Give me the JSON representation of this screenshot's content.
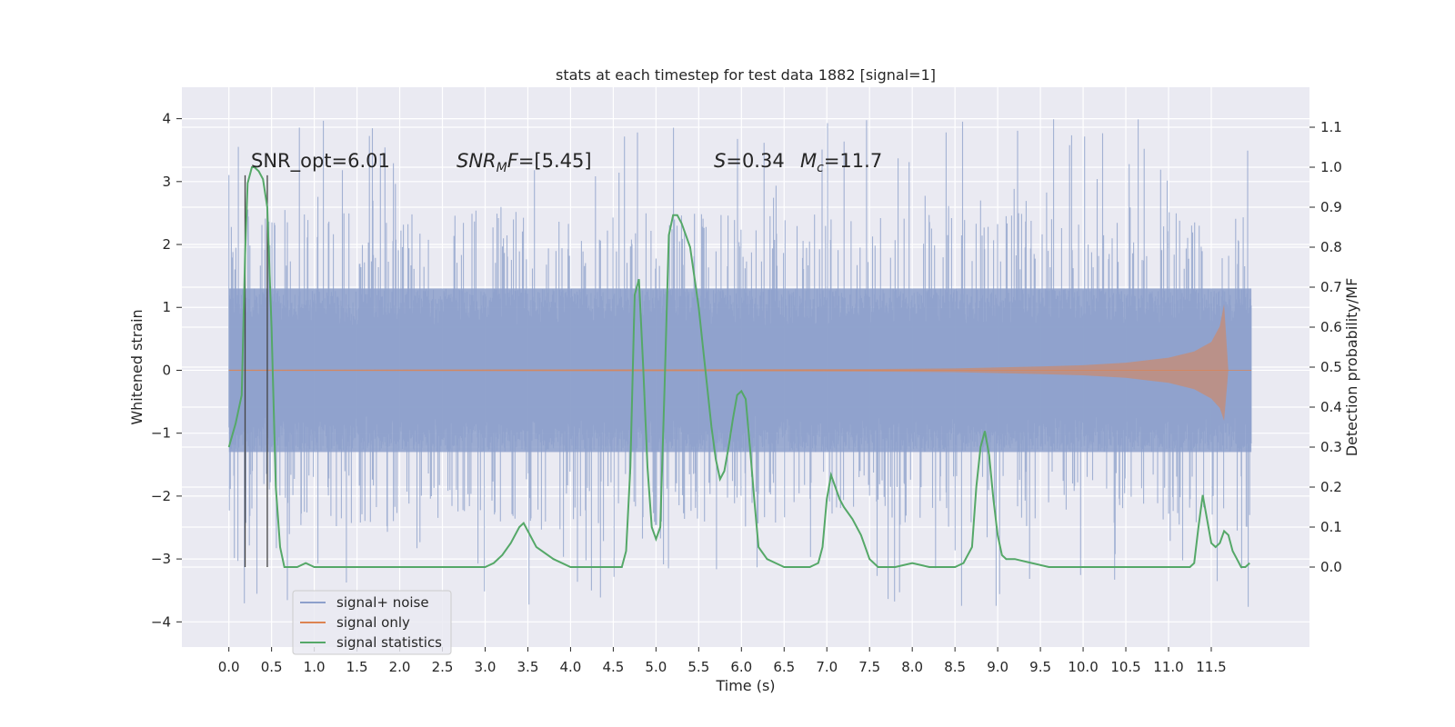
{
  "chart_data": {
    "type": "line",
    "title": "stats at each timestep for test data 1882 [signal=1]",
    "xlabel": "Time (s)",
    "ylabel": "Whitened strain",
    "ylabel_right": "Detection probability/MF",
    "xlim": [
      -0.55,
      12.65
    ],
    "ylim": [
      -4.4,
      4.5
    ],
    "ylim_right": [
      -0.2,
      1.2
    ],
    "xticks": [
      0.0,
      0.5,
      1.0,
      1.5,
      2.0,
      2.5,
      3.0,
      3.5,
      4.0,
      4.5,
      5.0,
      5.5,
      6.0,
      6.5,
      7.0,
      7.5,
      8.0,
      8.5,
      9.0,
      9.5,
      10.0,
      10.5,
      11.0,
      11.5
    ],
    "xtick_labels": [
      "0.0",
      "0.5",
      "1.0",
      "1.5",
      "2.0",
      "2.5",
      "3.0",
      "3.5",
      "4.0",
      "4.5",
      "5.0",
      "5.5",
      "6.0",
      "6.5",
      "7.0",
      "7.5",
      "8.0",
      "8.5",
      "9.0",
      "9.5",
      "10.0",
      "10.5",
      "11.0",
      "11.5"
    ],
    "yticks_left": [
      4,
      3,
      2,
      1,
      0,
      -1,
      -2,
      -3,
      -4
    ],
    "ytick_labels_left": [
      "4",
      "3",
      "2",
      "1",
      "0",
      "−1",
      "−2",
      "−3",
      "−4"
    ],
    "yticks_right": [
      1.1,
      1.0,
      0.9,
      0.8,
      0.7,
      0.6,
      0.5,
      0.4,
      0.3,
      0.2,
      0.1,
      0.0
    ],
    "ytick_labels_right": [
      "1.1",
      "1.0",
      "0.9",
      "0.8",
      "0.7",
      "0.6",
      "0.5",
      "0.4",
      "0.3",
      "0.2",
      "0.1",
      "0.0"
    ],
    "grid": true,
    "legend_position": "lower-left",
    "annotations": {
      "snr_opt": "SNR_opt=6.01",
      "snr_mf_sym": "SNR",
      "snr_mf_sub": "M",
      "snr_mf_sym2": "F",
      "snr_mf_val": "=[5.45]",
      "s_sym": "S",
      "s_val": "=0.34",
      "mc_sym": "M",
      "mc_sub": "c",
      "mc_val": "=11.7"
    },
    "vertical_markers_x": [
      0.19,
      0.45
    ],
    "series": [
      {
        "name": "signal+ noise",
        "color": "#8da0cb",
        "axis": "left",
        "description": "whitened noisy strain from 0 to 12 s; dense band roughly ±1.3 with spikes to about ±4"
      },
      {
        "name": "signal only",
        "color": "#dd8452",
        "axis": "left",
        "envelope": {
          "x": [
            0.0,
            7.5,
            8.5,
            9.5,
            10.0,
            10.5,
            11.0,
            11.3,
            11.5,
            11.6,
            11.65,
            11.7,
            12.0
          ],
          "upper": [
            0.01,
            0.02,
            0.03,
            0.06,
            0.08,
            0.12,
            0.2,
            0.3,
            0.45,
            0.7,
            1.05,
            0.0,
            0.0
          ],
          "lower": [
            -0.01,
            -0.02,
            -0.03,
            -0.06,
            -0.08,
            -0.12,
            -0.2,
            -0.3,
            -0.45,
            -0.6,
            -0.8,
            0.0,
            0.0
          ]
        }
      },
      {
        "name": "signal statistics",
        "color": "#55a868",
        "axis": "right",
        "x": [
          0.0,
          0.08,
          0.15,
          0.19,
          0.22,
          0.27,
          0.3,
          0.35,
          0.4,
          0.45,
          0.5,
          0.55,
          0.6,
          0.65,
          0.7,
          0.8,
          0.9,
          1.0,
          1.2,
          1.4,
          1.6,
          1.8,
          2.0,
          2.2,
          2.5,
          2.8,
          3.0,
          3.1,
          3.2,
          3.3,
          3.4,
          3.45,
          3.5,
          3.6,
          3.8,
          4.0,
          4.2,
          4.5,
          4.6,
          4.65,
          4.7,
          4.75,
          4.8,
          4.85,
          4.9,
          4.95,
          5.0,
          5.05,
          5.1,
          5.15,
          5.2,
          5.25,
          5.3,
          5.4,
          5.5,
          5.6,
          5.65,
          5.7,
          5.75,
          5.8,
          5.85,
          5.9,
          5.95,
          6.0,
          6.05,
          6.1,
          6.15,
          6.2,
          6.3,
          6.4,
          6.5,
          6.6,
          6.8,
          6.9,
          6.95,
          7.0,
          7.05,
          7.1,
          7.15,
          7.2,
          7.3,
          7.4,
          7.5,
          7.6,
          7.8,
          8.0,
          8.2,
          8.5,
          8.6,
          8.7,
          8.75,
          8.8,
          8.85,
          8.9,
          8.95,
          9.0,
          9.05,
          9.1,
          9.2,
          9.4,
          9.6,
          10.0,
          10.5,
          11.0,
          11.25,
          11.3,
          11.35,
          11.4,
          11.45,
          11.5,
          11.55,
          11.6,
          11.65,
          11.7,
          11.75,
          11.8,
          11.85,
          11.9,
          11.95
        ],
        "values": [
          0.3,
          0.36,
          0.43,
          0.78,
          0.96,
          1.0,
          1.0,
          0.99,
          0.97,
          0.9,
          0.6,
          0.2,
          0.05,
          0.0,
          0.0,
          0.0,
          0.01,
          0.0,
          0.0,
          0.0,
          0.0,
          0.0,
          0.0,
          0.0,
          0.0,
          0.0,
          0.0,
          0.01,
          0.03,
          0.06,
          0.1,
          0.11,
          0.09,
          0.05,
          0.02,
          0.0,
          0.0,
          0.0,
          0.0,
          0.04,
          0.25,
          0.68,
          0.72,
          0.5,
          0.25,
          0.1,
          0.07,
          0.1,
          0.45,
          0.83,
          0.88,
          0.88,
          0.86,
          0.8,
          0.65,
          0.45,
          0.35,
          0.27,
          0.22,
          0.24,
          0.3,
          0.37,
          0.43,
          0.44,
          0.42,
          0.3,
          0.17,
          0.05,
          0.02,
          0.01,
          0.0,
          0.0,
          0.0,
          0.01,
          0.05,
          0.17,
          0.23,
          0.2,
          0.17,
          0.15,
          0.12,
          0.08,
          0.02,
          0.0,
          0.0,
          0.01,
          0.0,
          0.0,
          0.01,
          0.05,
          0.2,
          0.3,
          0.34,
          0.28,
          0.17,
          0.08,
          0.03,
          0.02,
          0.02,
          0.01,
          0.0,
          0.0,
          0.0,
          0.0,
          0.0,
          0.01,
          0.1,
          0.18,
          0.12,
          0.06,
          0.05,
          0.06,
          0.09,
          0.08,
          0.04,
          0.02,
          0.0,
          0.0,
          0.01
        ]
      }
    ]
  }
}
